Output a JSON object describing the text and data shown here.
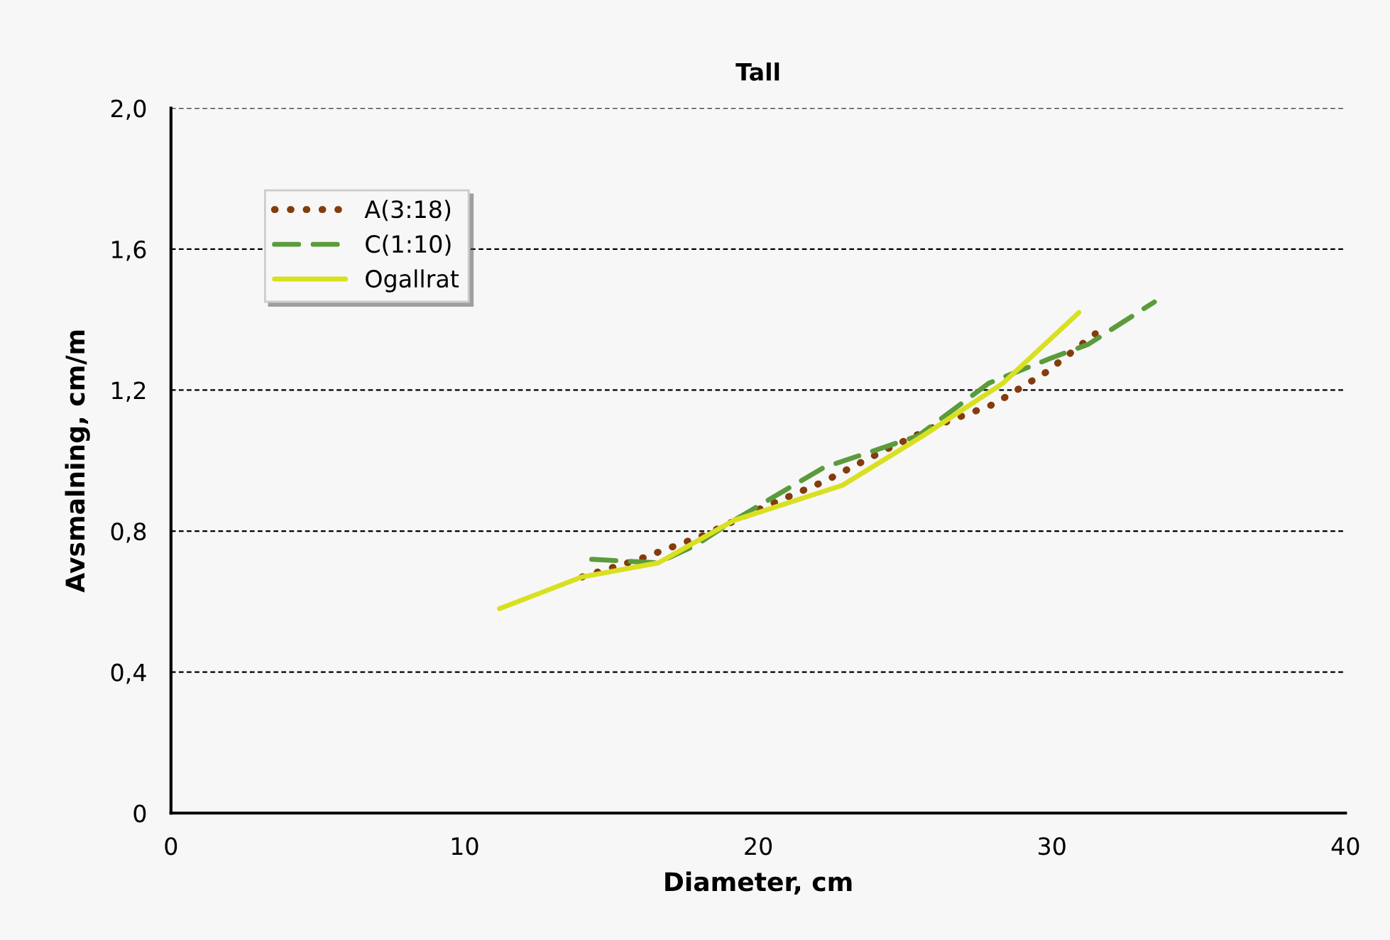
{
  "chart_data": {
    "type": "line",
    "title": "Tall",
    "xlabel": "Diameter, cm",
    "ylabel": "Avsmalning, cm/m",
    "xlim": [
      0,
      40
    ],
    "xticks": [
      0,
      10,
      20,
      30,
      40
    ],
    "ylim": [
      0,
      2.0
    ],
    "yticks": [
      {
        "value": 0,
        "label": "0"
      },
      {
        "value": 0.4,
        "label": "0,4"
      },
      {
        "value": 0.8,
        "label": "0,8"
      },
      {
        "value": 1.2,
        "label": "1,2"
      },
      {
        "value": 1.6,
        "label": "1,6"
      },
      {
        "value": 2.0,
        "label": "2,0"
      }
    ],
    "grid": "y",
    "legend": "top left",
    "marker": "none",
    "series": [
      {
        "name": "A(3:18)",
        "color": "#843c0c",
        "line_style": "dotted",
        "x": [
          14.0,
          15.94,
          18.2,
          19.97,
          22.22,
          24.32,
          26.09,
          28.02,
          29.79,
          31.48
        ],
        "values": [
          0.67,
          0.72,
          0.79,
          0.86,
          0.94,
          1.03,
          1.1,
          1.16,
          1.25,
          1.36
        ]
      },
      {
        "name": "C(1:10)",
        "color": "#5b9b3c",
        "line_style": "dashed",
        "x": [
          14.33,
          16.58,
          17.87,
          19.16,
          22.22,
          25.44,
          27.86,
          29.95,
          31.24,
          33.49
        ],
        "values": [
          0.72,
          0.71,
          0.76,
          0.83,
          0.98,
          1.07,
          1.22,
          1.29,
          1.33,
          1.45
        ]
      },
      {
        "name": "Ogallrat",
        "color": "#d9e021",
        "line_style": "solid",
        "x": [
          11.19,
          14.0,
          16.6,
          19.16,
          22.87,
          25.6,
          28.34,
          30.92
        ],
        "values": [
          0.58,
          0.67,
          0.71,
          0.83,
          0.93,
          1.07,
          1.22,
          1.42
        ]
      }
    ]
  }
}
